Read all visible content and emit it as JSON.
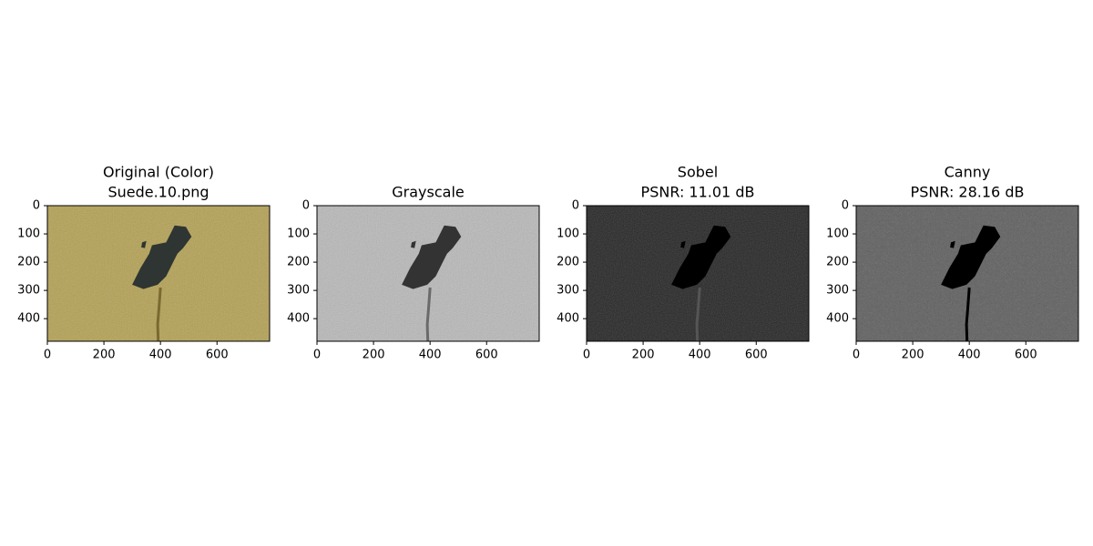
{
  "chart_data": [
    {
      "type": "image",
      "title": [
        "Original (Color)",
        "Suede.10.png"
      ],
      "xlim": [
        0,
        786
      ],
      "ylim": [
        480,
        0
      ],
      "xticks": [
        0,
        200,
        400,
        600
      ],
      "yticks": [
        0,
        100,
        200,
        300,
        400
      ]
    },
    {
      "type": "image",
      "title": [
        "Grayscale"
      ],
      "xlim": [
        0,
        786
      ],
      "ylim": [
        480,
        0
      ],
      "xticks": [
        0,
        200,
        400,
        600
      ],
      "yticks": [
        0,
        100,
        200,
        300,
        400
      ]
    },
    {
      "type": "image",
      "title": [
        "Sobel",
        "PSNR: 11.01 dB"
      ],
      "xlim": [
        0,
        786
      ],
      "ylim": [
        480,
        0
      ],
      "xticks": [
        0,
        200,
        400,
        600
      ],
      "yticks": [
        0,
        100,
        200,
        300,
        400
      ]
    },
    {
      "type": "image",
      "title": [
        "Canny",
        "PSNR: 28.16 dB"
      ],
      "xlim": [
        0,
        786
      ],
      "ylim": [
        480,
        0
      ],
      "xticks": [
        0,
        200,
        400,
        600
      ],
      "yticks": [
        0,
        100,
        200,
        300,
        400
      ]
    }
  ]
}
